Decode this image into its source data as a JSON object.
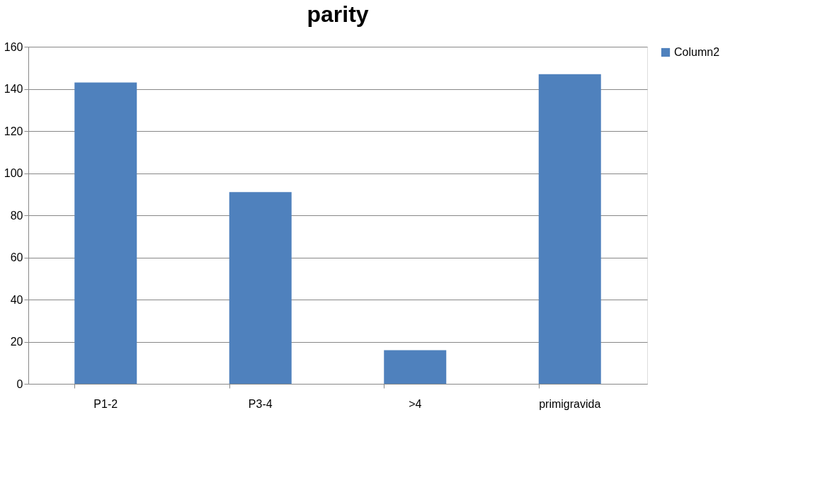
{
  "chart_data": {
    "type": "bar",
    "title": "parity",
    "categories": [
      "P1-2",
      "P3-4",
      ">4",
      "primigravida"
    ],
    "series": [
      {
        "name": "Column2",
        "color": "#4f81bd",
        "values": [
          143,
          91,
          16,
          147
        ]
      }
    ],
    "ylim": [
      0,
      160
    ],
    "yticks": [
      0,
      20,
      40,
      60,
      80,
      100,
      120,
      140,
      160
    ],
    "grid": "y",
    "legend": "right"
  }
}
